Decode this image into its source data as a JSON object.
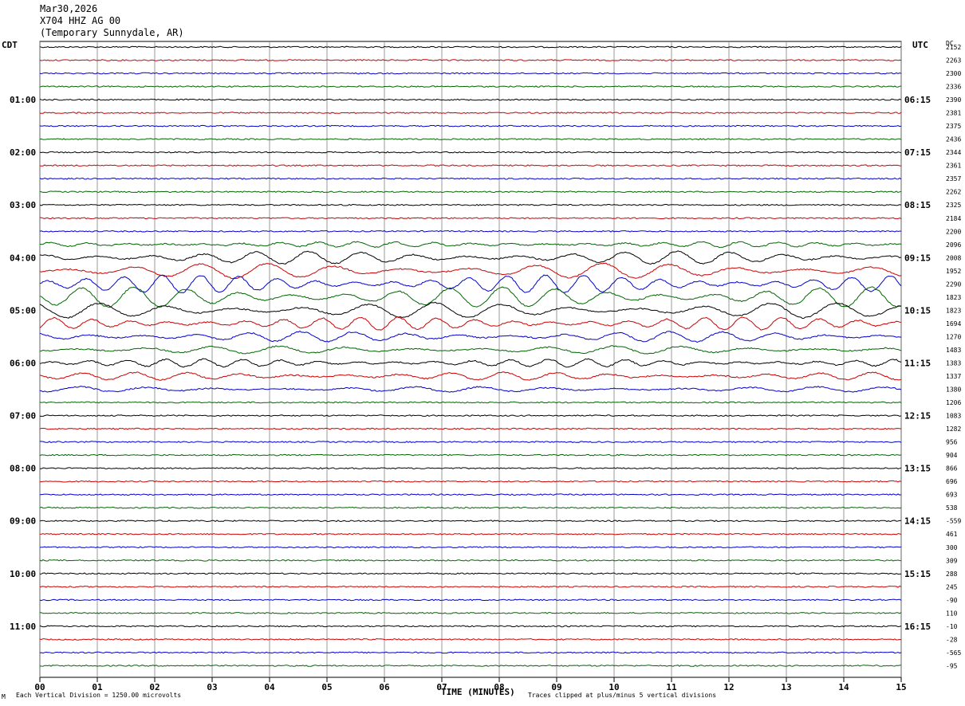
{
  "header": {
    "date": "Mar30,2026",
    "station": "X704 HHZ AG 00",
    "location": "(Temporary Sunnydale, AR)"
  },
  "left_zone_label": "CDT",
  "right_zone_label": "UTC",
  "dc_label": "DC",
  "footer": {
    "scale_note": "Each Vertical Division = 1250.00 microvolts",
    "clip_note": "Traces clipped at plus/minus 5 vertical divisions",
    "corner_mark": "M"
  },
  "colors": {
    "black": "#000000",
    "red": "#cc0000",
    "blue": "#0000cc",
    "green": "#006600",
    "grid": "#7f7f7f"
  },
  "chart_data": {
    "type": "line",
    "title": "",
    "xlabel": "TIME (MINUTES)",
    "xlim": [
      0,
      15
    ],
    "x_ticks": [
      "00",
      "01",
      "02",
      "03",
      "04",
      "05",
      "06",
      "07",
      "08",
      "09",
      "10",
      "11",
      "12",
      "13",
      "14",
      "15"
    ],
    "left_time_labels": [
      "01:00",
      "02:00",
      "03:00",
      "04:00",
      "05:00",
      "06:00",
      "07:00",
      "08:00",
      "09:00",
      "10:00",
      "11:00"
    ],
    "right_time_labels": [
      "06:15",
      "07:15",
      "08:15",
      "09:15",
      "10:15",
      "11:15",
      "12:15",
      "13:15",
      "14:15",
      "15:15",
      "16:15"
    ],
    "trace_count": 48,
    "trace_color_cycle": [
      "black",
      "red",
      "blue",
      "green"
    ],
    "dc_offsets": [
      "2152",
      "2263",
      "2300",
      "2336",
      "2390",
      "2381",
      "2375",
      "2436",
      "2344",
      "2361",
      "2357",
      "2262",
      "2325",
      "2184",
      "2200",
      "2096",
      "2008",
      "1952",
      "2290",
      "1823",
      "1823",
      "1694",
      "1270",
      "1483",
      "1383",
      "1337",
      "1380",
      "1206",
      "1083",
      "1282",
      "956",
      "904",
      "866",
      "696",
      "693",
      "538",
      "-559",
      "461",
      "300",
      "309",
      "288",
      "245",
      "-90",
      "110",
      "-10",
      "-28",
      "-565",
      "-95"
    ],
    "activity_level": [
      1,
      1,
      1,
      1,
      1,
      1,
      1,
      1,
      1,
      1,
      1,
      1,
      1,
      1,
      1,
      2,
      5,
      6,
      7,
      8,
      6,
      5,
      4,
      3,
      3,
      3,
      2,
      1,
      1,
      1,
      1,
      1,
      1,
      1,
      1,
      1,
      1,
      1,
      1,
      1,
      1,
      1,
      1,
      1,
      1,
      1,
      1,
      1
    ],
    "scale_microvolts_per_division": 1250.0,
    "clip_divisions": 5
  }
}
